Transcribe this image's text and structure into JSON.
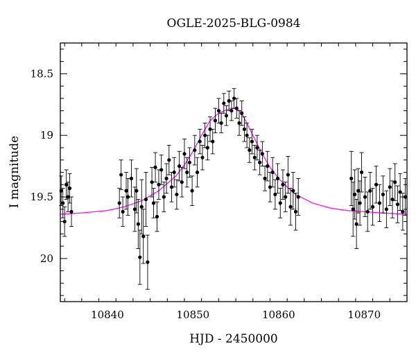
{
  "chart_data": {
    "type": "scatter",
    "title": "OGLE-2025-BLG-0984",
    "xlabel": "HJD - 2450000",
    "ylabel": "I magnitude",
    "xlim": [
      10834.5,
      10875
    ],
    "ylim": [
      20.35,
      18.25
    ],
    "y_inverted": true,
    "grid": false,
    "legend": "none",
    "xticks": [
      10840,
      10850,
      10860,
      10870
    ],
    "xtick_labels": [
      "10840",
      "10850",
      "10860",
      "10870"
    ],
    "yticks": [
      18.5,
      19,
      19.5,
      20
    ],
    "ytick_labels": [
      "18.5",
      "19",
      "19.5",
      "20"
    ],
    "colors": {
      "points": "#000000",
      "model": "#ff00ff"
    },
    "model_curve": {
      "name": "model",
      "x": [
        10834.5,
        10837,
        10840,
        10842,
        10844,
        10846,
        10848,
        10849,
        10850,
        10851,
        10852,
        10853,
        10854,
        10854.7,
        10855.5,
        10856,
        10857,
        10858,
        10859,
        10860,
        10861,
        10862,
        10864,
        10866,
        10868,
        10870,
        10872,
        10875
      ],
      "y": [
        19.64,
        19.63,
        19.61,
        19.58,
        19.53,
        19.45,
        19.33,
        19.24,
        19.13,
        19.0,
        18.88,
        18.82,
        18.79,
        18.78,
        18.8,
        18.86,
        19.0,
        19.14,
        19.26,
        19.35,
        19.42,
        19.48,
        19.55,
        19.59,
        19.61,
        19.62,
        19.63,
        19.64
      ]
    },
    "series": [
      {
        "name": "data",
        "x": [
          10834.6,
          10834.8,
          10835.0,
          10835.2,
          10835.4,
          10835.6,
          10835.8,
          10841.4,
          10841.6,
          10841.8,
          10842.2,
          10842.4,
          10842.8,
          10843.2,
          10843.4,
          10843.6,
          10843.8,
          10844.0,
          10844.2,
          10844.5,
          10844.7,
          10845.2,
          10845.4,
          10845.6,
          10845.8,
          10846.0,
          10846.3,
          10846.6,
          10846.9,
          10847.2,
          10847.5,
          10847.8,
          10848.1,
          10848.4,
          10848.7,
          10849.0,
          10849.3,
          10849.6,
          10849.9,
          10850.2,
          10850.5,
          10850.8,
          10851.1,
          10851.4,
          10851.7,
          10852.0,
          10852.3,
          10852.6,
          10853.0,
          10853.3,
          10853.6,
          10853.9,
          10854.2,
          10854.5,
          10854.8,
          10855.1,
          10855.4,
          10855.7,
          10856.0,
          10856.3,
          10856.6,
          10856.9,
          10857.2,
          10857.5,
          10857.8,
          10858.1,
          10858.4,
          10858.7,
          10859.0,
          10859.3,
          10859.6,
          10859.9,
          10860.2,
          10860.5,
          10860.8,
          10861.1,
          10861.4,
          10861.7,
          10862.0,
          10862.3,
          10868.5,
          10868.7,
          10868.9,
          10869.1,
          10869.3,
          10869.5,
          10869.7,
          10870.1,
          10870.4,
          10870.7,
          10871.0,
          10871.4,
          10871.8,
          10872.2,
          10872.6,
          10873.0,
          10873.3,
          10873.6,
          10873.9,
          10874.2,
          10874.5,
          10874.8
        ],
        "y": [
          19.45,
          19.55,
          19.7,
          19.4,
          19.5,
          19.43,
          19.62,
          19.55,
          19.32,
          19.62,
          19.45,
          19.5,
          19.35,
          19.6,
          19.45,
          19.72,
          19.99,
          19.58,
          19.82,
          19.52,
          20.03,
          19.38,
          19.55,
          19.26,
          19.66,
          19.4,
          19.28,
          19.5,
          19.35,
          19.2,
          19.42,
          19.3,
          19.48,
          19.25,
          19.38,
          19.15,
          19.3,
          19.22,
          19.45,
          19.12,
          19.3,
          19.05,
          19.18,
          19.0,
          19.1,
          18.95,
          19.05,
          18.88,
          18.8,
          18.9,
          18.74,
          18.84,
          18.72,
          18.8,
          18.7,
          18.78,
          18.9,
          18.82,
          18.95,
          19.0,
          19.12,
          19.05,
          19.18,
          19.1,
          19.22,
          19.15,
          19.35,
          19.25,
          19.42,
          19.3,
          19.48,
          19.35,
          19.55,
          19.4,
          19.5,
          19.32,
          19.58,
          19.45,
          19.62,
          19.5,
          19.35,
          19.6,
          19.48,
          19.72,
          19.45,
          19.55,
          19.3,
          19.5,
          19.62,
          19.45,
          19.58,
          19.4,
          19.55,
          19.48,
          19.6,
          19.42,
          19.52,
          19.38,
          19.56,
          19.46,
          19.62,
          19.5
        ],
        "err": [
          0.12,
          0.12,
          0.12,
          0.12,
          0.12,
          0.12,
          0.12,
          0.12,
          0.12,
          0.12,
          0.15,
          0.15,
          0.15,
          0.18,
          0.18,
          0.2,
          0.22,
          0.22,
          0.22,
          0.22,
          0.22,
          0.12,
          0.12,
          0.12,
          0.12,
          0.12,
          0.12,
          0.12,
          0.12,
          0.12,
          0.12,
          0.12,
          0.12,
          0.12,
          0.12,
          0.12,
          0.12,
          0.12,
          0.12,
          0.12,
          0.12,
          0.1,
          0.1,
          0.1,
          0.1,
          0.1,
          0.1,
          0.1,
          0.1,
          0.08,
          0.08,
          0.08,
          0.08,
          0.08,
          0.08,
          0.08,
          0.1,
          0.1,
          0.1,
          0.1,
          0.1,
          0.1,
          0.1,
          0.1,
          0.1,
          0.1,
          0.1,
          0.12,
          0.12,
          0.12,
          0.12,
          0.12,
          0.12,
          0.12,
          0.12,
          0.15,
          0.15,
          0.15,
          0.15,
          0.15,
          0.22,
          0.22,
          0.2,
          0.2,
          0.18,
          0.18,
          0.16,
          0.16,
          0.16,
          0.15,
          0.15,
          0.15,
          0.15,
          0.15,
          0.15,
          0.15,
          0.15,
          0.15,
          0.15,
          0.15,
          0.15,
          0.15
        ]
      }
    ]
  }
}
